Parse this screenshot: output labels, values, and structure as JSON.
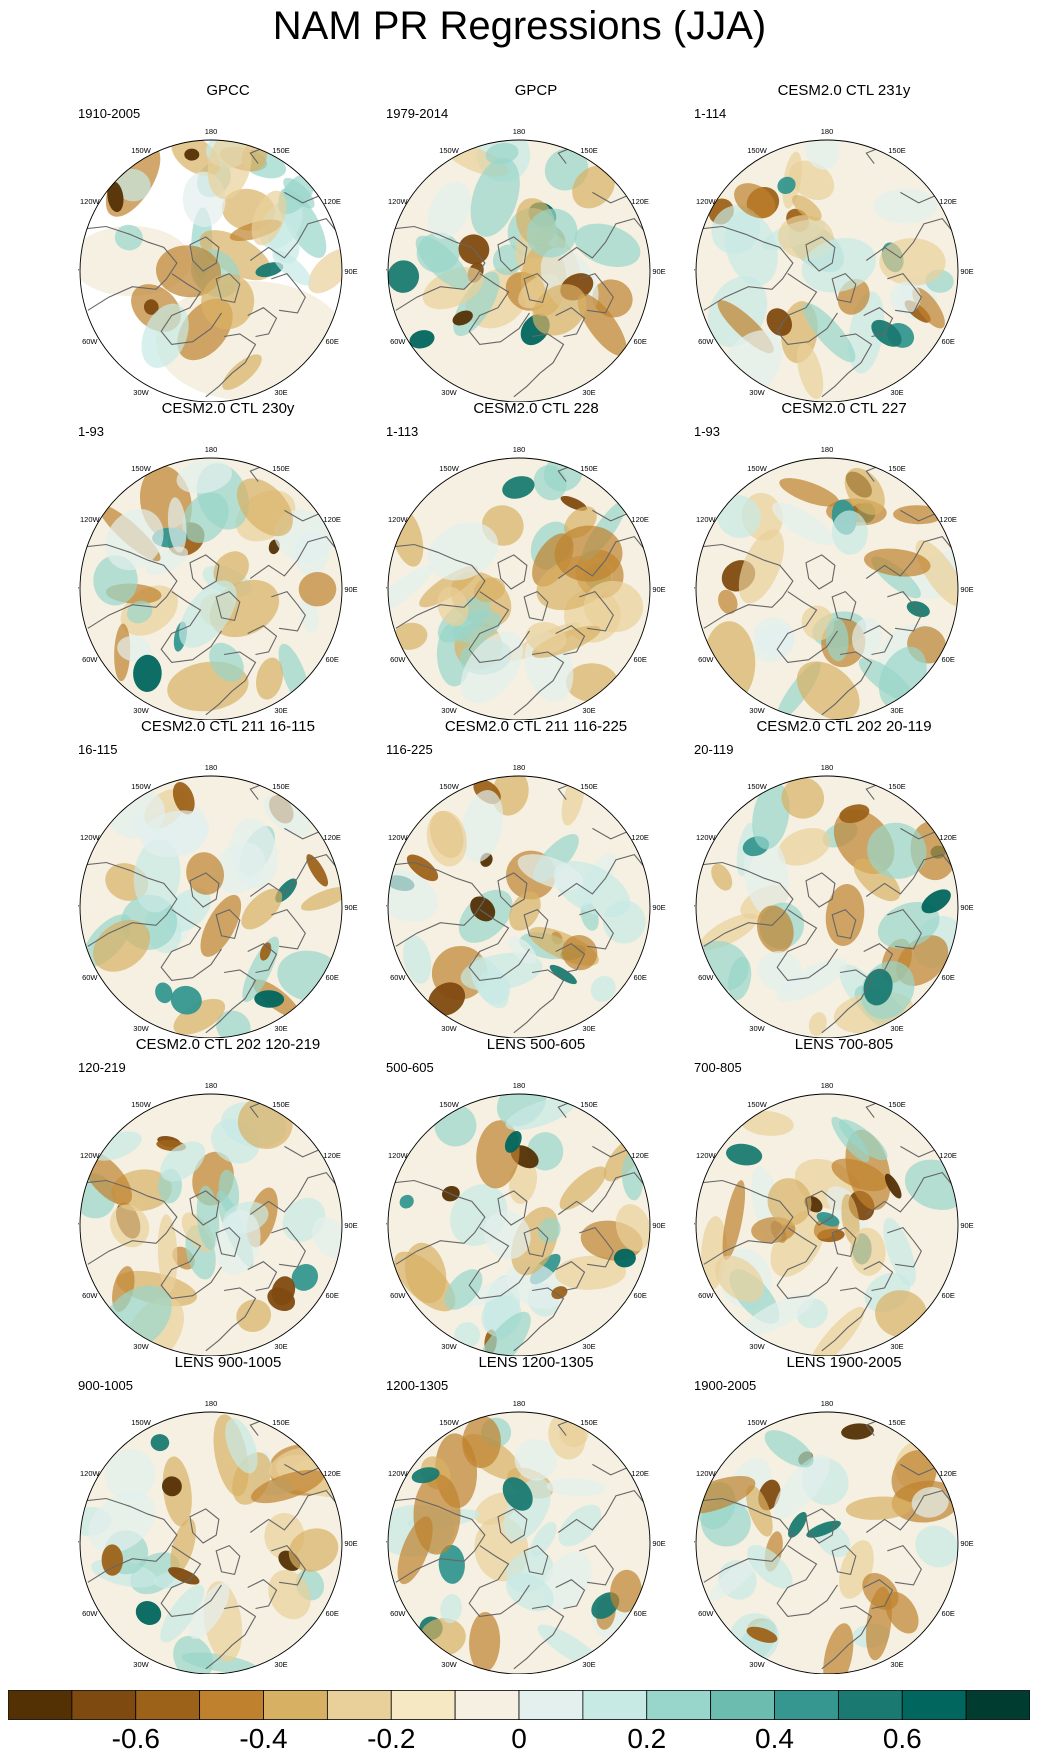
{
  "title": "NAM PR Regressions (JJA)",
  "panels": [
    {
      "title": "GPCC",
      "period": "1910-2005"
    },
    {
      "title": "GPCP",
      "period": "1979-2014"
    },
    {
      "title": "CESM2.0 CTL 231y",
      "period": "1-114"
    },
    {
      "title": "CESM2.0 CTL 230y",
      "period": "1-93"
    },
    {
      "title": "CESM2.0 CTL 228",
      "period": "1-113"
    },
    {
      "title": "CESM2.0 CTL 227",
      "period": "1-93"
    },
    {
      "title": "CESM2.0 CTL 211 16-115",
      "period": "16-115"
    },
    {
      "title": "CESM2.0 CTL 211 116-225",
      "period": "116-225"
    },
    {
      "title": "CESM2.0 CTL 202 20-119",
      "period": "20-119"
    },
    {
      "title": "CESM2.0 CTL 202 120-219",
      "period": "120-219"
    },
    {
      "title": "LENS 500-605",
      "period": "500-605"
    },
    {
      "title": "LENS 700-805",
      "period": "700-805"
    },
    {
      "title": "LENS 900-1005",
      "period": "900-1005"
    },
    {
      "title": "LENS 1200-1305",
      "period": "1200-1305"
    },
    {
      "title": "LENS 1900-2005",
      "period": "1900-2005"
    }
  ],
  "longitude_labels": [
    "180",
    "150E",
    "120E",
    "90E",
    "60E",
    "30E",
    "0",
    "30W",
    "60W",
    "90W",
    "120W",
    "150W"
  ],
  "colorbar": {
    "colors": [
      "#543005",
      "#7f4a10",
      "#9d6219",
      "#bf812d",
      "#d8b064",
      "#e9d09a",
      "#f6e8c3",
      "#f5f0e1",
      "#e3f0ee",
      "#c7eae5",
      "#98d6cb",
      "#6cbcb0",
      "#35978f",
      "#1a7a71",
      "#01665e",
      "#003c30"
    ],
    "labels": [
      "-0.6",
      "-0.4",
      "-0.2",
      "0",
      "0.2",
      "0.4",
      "0.6"
    ]
  }
}
